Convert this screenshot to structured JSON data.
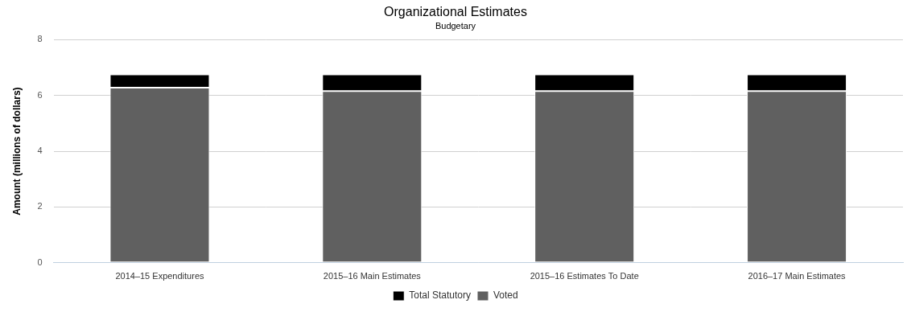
{
  "chart_data": {
    "type": "bar",
    "title": "Organizational Estimates",
    "subtitle": "Budgetary",
    "y_label": "Amount (millions of dollars)",
    "categories": [
      "2014–15 Expenditures",
      "2015–16 Main Estimates",
      "2015–16 Estimates To Date",
      "2016–17 Main Estimates"
    ],
    "series": [
      {
        "name": "Total Statutory",
        "color": "#000000",
        "values": [
          0.48,
          0.6,
          0.6,
          0.6
        ]
      },
      {
        "name": "Voted",
        "color": "#606060",
        "values": [
          6.28,
          6.16,
          6.16,
          6.16
        ]
      }
    ],
    "ylim": [
      0,
      8
    ],
    "yticks": [
      0,
      2,
      4,
      6,
      8
    ],
    "grid": true,
    "stacked": true,
    "legend": "bottom"
  }
}
